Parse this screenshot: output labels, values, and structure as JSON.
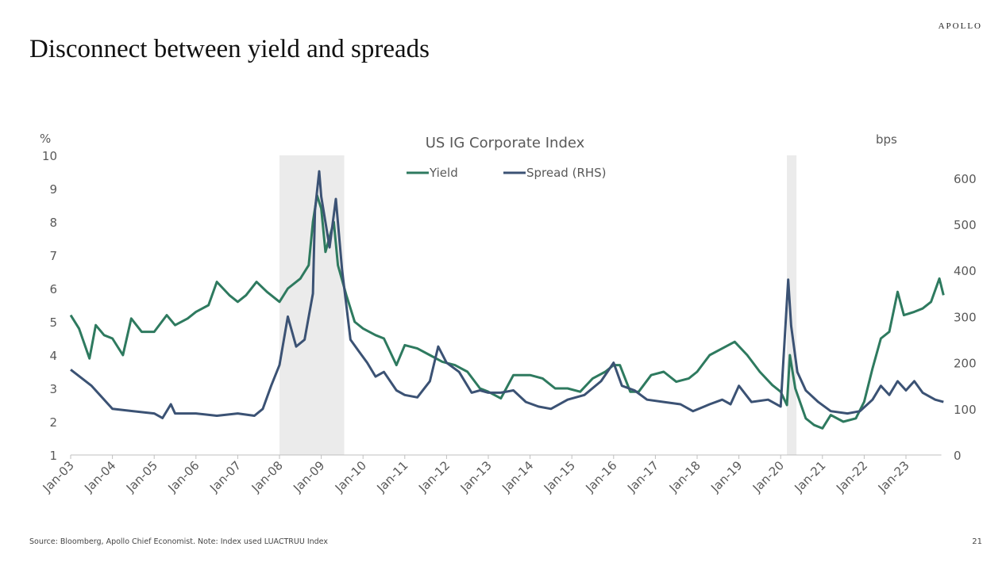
{
  "brand": "APOLLO",
  "title": "Disconnect between yield and spreads",
  "source": "Source: Bloomberg, Apollo Chief Economist. Note: Index used LUACTRUU Index",
  "page_number": "21",
  "colors": {
    "yield": "#2E7A5F",
    "spread": "#3B5274",
    "recession": "#EBEBEB"
  },
  "chart_data": {
    "type": "line",
    "title": "US IG Corporate Index",
    "ylabel": "%",
    "y2label": "bps",
    "ylim": [
      1,
      10
    ],
    "y2lim": [
      0,
      650
    ],
    "yticks": [
      1,
      2,
      3,
      4,
      5,
      6,
      7,
      8,
      9,
      10
    ],
    "y2ticks": [
      0,
      100,
      200,
      300,
      400,
      500,
      600
    ],
    "xlim": [
      2003.0,
      2024.0
    ],
    "xticks": [
      "Jan-03",
      "Jan-04",
      "Jan-05",
      "Jan-06",
      "Jan-07",
      "Jan-08",
      "Jan-09",
      "Jan-10",
      "Jan-11",
      "Jan-12",
      "Jan-13",
      "Jan-14",
      "Jan-15",
      "Jan-16",
      "Jan-17",
      "Jan-18",
      "Jan-19",
      "Jan-20",
      "Jan-21",
      "Jan-22",
      "Jan-23"
    ],
    "legend": "top-center",
    "recessions": [
      [
        2008.0,
        2009.55
      ],
      [
        2020.15,
        2020.38
      ]
    ],
    "series": [
      {
        "name": "Yield",
        "axis": "left",
        "x": [
          2003.0,
          2003.2,
          2003.45,
          2003.6,
          2003.8,
          2004.0,
          2004.25,
          2004.45,
          2004.7,
          2005.0,
          2005.3,
          2005.5,
          2005.8,
          2006.0,
          2006.3,
          2006.5,
          2006.8,
          2007.0,
          2007.2,
          2007.45,
          2007.7,
          2008.0,
          2008.2,
          2008.5,
          2008.7,
          2008.8,
          2008.9,
          2009.0,
          2009.1,
          2009.3,
          2009.4,
          2009.6,
          2009.8,
          2010.0,
          2010.3,
          2010.5,
          2010.8,
          2011.0,
          2011.3,
          2011.6,
          2011.9,
          2012.2,
          2012.5,
          2012.8,
          2013.0,
          2013.3,
          2013.6,
          2013.8,
          2014.0,
          2014.3,
          2014.6,
          2014.9,
          2015.2,
          2015.5,
          2015.8,
          2016.0,
          2016.15,
          2016.4,
          2016.6,
          2016.9,
          2017.2,
          2017.5,
          2017.8,
          2018.0,
          2018.3,
          2018.6,
          2018.9,
          2019.2,
          2019.5,
          2019.8,
          2020.0,
          2020.15,
          2020.22,
          2020.35,
          2020.6,
          2020.8,
          2021.0,
          2021.2,
          2021.5,
          2021.8,
          2022.0,
          2022.2,
          2022.4,
          2022.6,
          2022.8,
          2022.95,
          2023.2,
          2023.4,
          2023.6,
          2023.8,
          2023.9
        ],
        "values": [
          5.2,
          4.8,
          3.9,
          4.9,
          4.6,
          4.5,
          4.0,
          5.1,
          4.7,
          4.7,
          5.2,
          4.9,
          5.1,
          5.3,
          5.5,
          6.2,
          5.8,
          5.6,
          5.8,
          6.2,
          5.9,
          5.6,
          6.0,
          6.3,
          6.7,
          8.0,
          8.8,
          8.4,
          7.1,
          8.0,
          6.7,
          5.8,
          5.0,
          4.8,
          4.6,
          4.5,
          3.7,
          4.3,
          4.2,
          4.0,
          3.8,
          3.7,
          3.5,
          3.0,
          2.9,
          2.7,
          3.4,
          3.4,
          3.4,
          3.3,
          3.0,
          3.0,
          2.9,
          3.3,
          3.5,
          3.7,
          3.7,
          2.9,
          2.9,
          3.4,
          3.5,
          3.2,
          3.3,
          3.5,
          4.0,
          4.2,
          4.4,
          4.0,
          3.5,
          3.1,
          2.9,
          2.5,
          4.0,
          3.0,
          2.1,
          1.9,
          1.8,
          2.2,
          2.0,
          2.1,
          2.6,
          3.6,
          4.5,
          4.7,
          5.9,
          5.2,
          5.3,
          5.4,
          5.6,
          6.3,
          5.8
        ]
      },
      {
        "name": "Spread (RHS)",
        "axis": "right",
        "x": [
          2003.0,
          2003.5,
          2004.0,
          2004.5,
          2005.0,
          2005.2,
          2005.4,
          2005.5,
          2006.0,
          2006.5,
          2007.0,
          2007.4,
          2007.6,
          2007.8,
          2008.0,
          2008.2,
          2008.4,
          2008.6,
          2008.8,
          2008.85,
          2008.95,
          2009.0,
          2009.2,
          2009.35,
          2009.5,
          2009.7,
          2009.9,
          2010.1,
          2010.3,
          2010.5,
          2010.8,
          2011.0,
          2011.3,
          2011.6,
          2011.8,
          2012.0,
          2012.3,
          2012.6,
          2012.8,
          2013.0,
          2013.3,
          2013.6,
          2013.9,
          2014.2,
          2014.5,
          2014.9,
          2015.3,
          2015.7,
          2016.0,
          2016.2,
          2016.5,
          2016.8,
          2017.2,
          2017.6,
          2017.9,
          2018.3,
          2018.6,
          2018.8,
          2019.0,
          2019.3,
          2019.7,
          2020.0,
          2020.18,
          2020.25,
          2020.4,
          2020.6,
          2020.9,
          2021.2,
          2021.6,
          2021.9,
          2022.2,
          2022.4,
          2022.6,
          2022.8,
          2023.0,
          2023.2,
          2023.4,
          2023.7,
          2023.9
        ],
        "values": [
          185,
          150,
          100,
          95,
          90,
          80,
          110,
          90,
          90,
          85,
          90,
          85,
          100,
          150,
          195,
          300,
          235,
          250,
          350,
          530,
          615,
          560,
          450,
          555,
          400,
          250,
          225,
          200,
          170,
          180,
          140,
          130,
          125,
          160,
          235,
          200,
          180,
          135,
          140,
          135,
          135,
          140,
          115,
          105,
          100,
          120,
          130,
          160,
          200,
          150,
          140,
          120,
          115,
          110,
          95,
          110,
          120,
          110,
          150,
          115,
          120,
          105,
          380,
          280,
          180,
          140,
          115,
          95,
          90,
          95,
          120,
          150,
          130,
          160,
          140,
          160,
          135,
          120,
          115
        ]
      }
    ]
  }
}
